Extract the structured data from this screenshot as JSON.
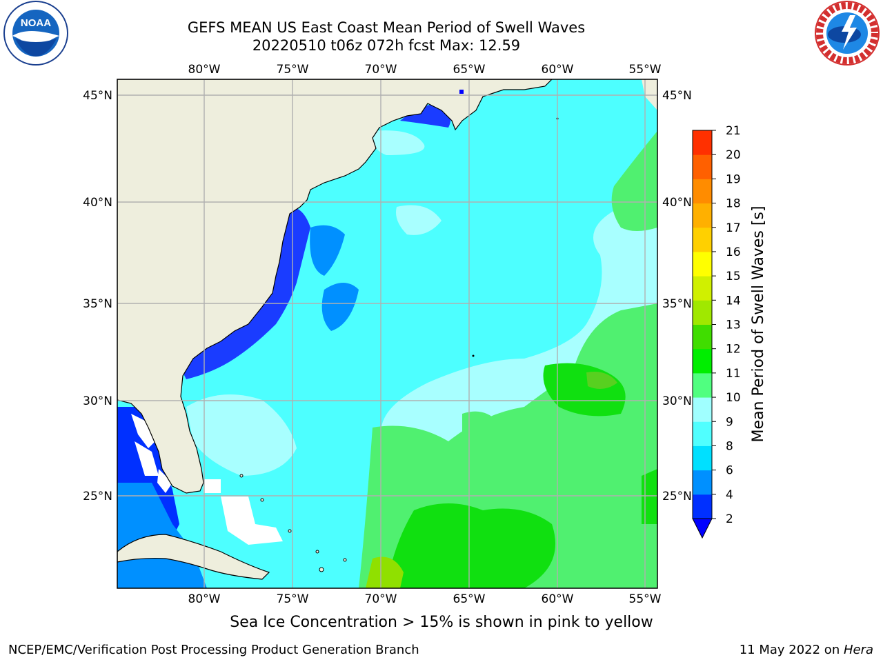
{
  "title": {
    "line1": "GEFS MEAN US East Coast Mean Period of Swell Waves",
    "line2": "20220510 t06z 072h fcst   Max: 12.59"
  },
  "logos": {
    "left": {
      "icon": "noaa-seal-icon",
      "text": "NOAA"
    },
    "right": {
      "icon": "national-weather-service-seal-icon"
    }
  },
  "map": {
    "region": "US East Coast / Western North Atlantic",
    "longitude_labels": [
      "80°W",
      "75°W",
      "70°W",
      "65°W",
      "60°W",
      "55°W"
    ],
    "latitude_labels": [
      "45°N",
      "40°N",
      "35°N",
      "30°N",
      "25°N"
    ],
    "colors": {
      "land": "#eeeedd",
      "grid": "#b0b0b0",
      "coastline": "#000000"
    }
  },
  "colorbar": {
    "label": "Mean Period of Swell Waves [s]",
    "tick_labels": [
      "2",
      "4",
      "6",
      "8",
      "9",
      "10",
      "11",
      "12",
      "13",
      "14",
      "15",
      "16",
      "17",
      "18",
      "19",
      "20",
      "21"
    ],
    "colors": [
      "#0030ff",
      "#0090ff",
      "#00e0ff",
      "#50ffff",
      "#a0ffff",
      "#50ff80",
      "#00ee00",
      "#40dd00",
      "#a0e800",
      "#d0f000",
      "#ffff00",
      "#ffd000",
      "#ffb000",
      "#ff8c00",
      "#ff6000",
      "#ff3000",
      "#ff0000"
    ],
    "under_color": "#0000ff"
  },
  "footer": {
    "note": "Sea Ice Concentration > 15% is shown in pink to yellow",
    "credit_left": "NCEP/EMC/Verification Post Processing Product Generation Branch",
    "credit_date": "11 May 2022 on ",
    "credit_machine": "Hera"
  }
}
